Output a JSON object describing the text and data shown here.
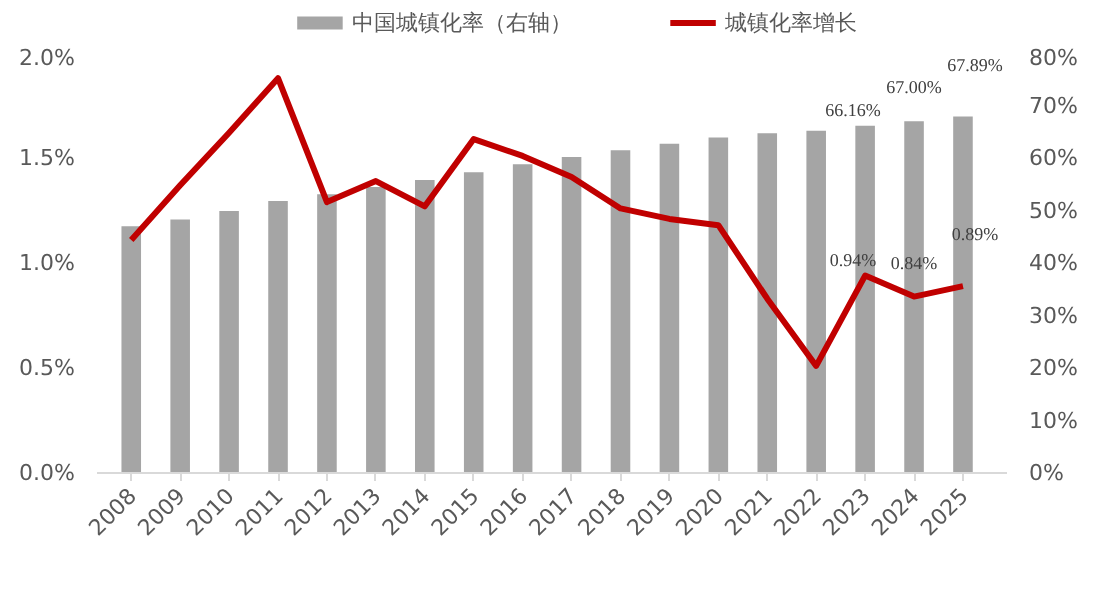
{
  "chart_data": {
    "type": "bar",
    "categories": [
      "2008",
      "2009",
      "2010",
      "2011",
      "2012",
      "2013",
      "2014",
      "2015",
      "2016",
      "2017",
      "2018",
      "2019",
      "2020",
      "2021",
      "2022",
      "2023",
      "2024",
      "2025"
    ],
    "series": [
      {
        "name": "中国城镇化率（右轴）",
        "axis": "y2",
        "color": "#a5a5a5",
        "values": [
          47.0,
          48.3,
          49.9,
          51.8,
          53.1,
          54.5,
          55.8,
          57.3,
          58.8,
          60.2,
          61.5,
          62.7,
          63.9,
          64.7,
          65.2,
          66.16,
          67.0,
          67.89
        ],
        "value_labels": [
          null,
          null,
          null,
          null,
          null,
          null,
          null,
          null,
          null,
          null,
          null,
          null,
          null,
          null,
          null,
          "66.16%",
          "67.00%",
          "67.89%"
        ]
      },
      {
        "name": "城镇化率增长",
        "type": "line",
        "color": "#c00000",
        "values": [
          1.11,
          1.37,
          1.62,
          1.88,
          1.29,
          1.39,
          1.27,
          1.59,
          1.51,
          1.41,
          1.26,
          1.21,
          1.18,
          0.83,
          0.51,
          0.94,
          0.84,
          0.89
        ],
        "value_labels": [
          null,
          null,
          null,
          null,
          null,
          null,
          null,
          null,
          null,
          null,
          null,
          null,
          null,
          null,
          null,
          "0.94%",
          "0.84%",
          "0.89%"
        ]
      }
    ],
    "ylim": [
      0,
      2.0
    ],
    "yticks": [
      {
        "value": 0,
        "label": "0.0%"
      },
      {
        "value": 0.5,
        "label": "0.5%"
      },
      {
        "value": 1.0,
        "label": "1.0%"
      },
      {
        "value": 1.5,
        "label": "1.5%"
      },
      {
        "value": 2.0,
        "label": "2.0%"
      }
    ],
    "y2lim": [
      0,
      80
    ],
    "y2ticks": [
      {
        "value": 0,
        "label": "0%"
      },
      {
        "value": 10,
        "label": "10%"
      },
      {
        "value": 20,
        "label": "20%"
      },
      {
        "value": 30,
        "label": "30%"
      },
      {
        "value": 40,
        "label": "40%"
      },
      {
        "value": 50,
        "label": "50%"
      },
      {
        "value": 60,
        "label": "60%"
      },
      {
        "value": 70,
        "label": "70%"
      },
      {
        "value": 80,
        "label": "80%"
      }
    ],
    "grid": false,
    "legend": "top",
    "marker": "none",
    "line_style": "solid"
  }
}
